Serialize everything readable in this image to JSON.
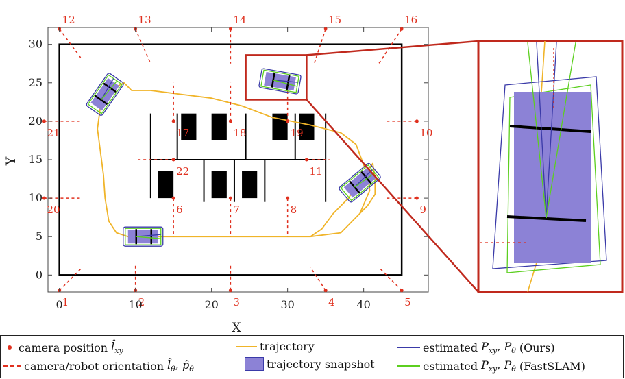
{
  "chart_data": {
    "type": "scatter",
    "xlabel": "X",
    "ylabel": "Y",
    "xlim": [
      -1.5,
      48.5
    ],
    "ylim": [
      -2.2,
      32.2
    ],
    "xticks": [
      0,
      10,
      20,
      30,
      40
    ],
    "yticks": [
      0,
      5,
      10,
      15,
      20,
      25,
      30
    ],
    "grid": false,
    "colors": {
      "camera": "#e0301e",
      "trajectory": "#f0b429",
      "ours": "#3a3aa8",
      "fastslam": "#5ccf1f",
      "snapshot": "#8c82d6",
      "zoom_frame": "#c0291d"
    },
    "arena": {
      "x": [
        0,
        45
      ],
      "y": [
        0,
        30
      ]
    },
    "cameras": [
      {
        "label": "1",
        "x": 0,
        "y": -2,
        "dx": 3,
        "dy": 3
      },
      {
        "label": "2",
        "x": 10,
        "y": -2,
        "dx": 0,
        "dy": 3.5
      },
      {
        "label": "3",
        "x": 22.5,
        "y": -2,
        "dx": 0,
        "dy": 3.5
      },
      {
        "label": "4",
        "x": 35,
        "y": -2,
        "dx": -2,
        "dy": 3
      },
      {
        "label": "5",
        "x": 45,
        "y": -2,
        "dx": -3,
        "dy": 3
      },
      {
        "label": "6",
        "x": 15,
        "y": 10,
        "dx": 0,
        "dy": -5
      },
      {
        "label": "7",
        "x": 22.5,
        "y": 10,
        "dx": 0,
        "dy": -5
      },
      {
        "label": "8",
        "x": 30,
        "y": 10,
        "dx": 0,
        "dy": -5
      },
      {
        "label": "9",
        "x": 47,
        "y": 10,
        "dx": -4,
        "dy": 0
      },
      {
        "label": "10",
        "x": 47,
        "y": 20,
        "dx": -4,
        "dy": 0
      },
      {
        "label": "11",
        "x": 32.5,
        "y": 15,
        "dx": 3,
        "dy": 0
      },
      {
        "label": "12",
        "x": 0,
        "y": 32,
        "dx": 3,
        "dy": -4
      },
      {
        "label": "13",
        "x": 10,
        "y": 32,
        "dx": 2,
        "dy": -4.5
      },
      {
        "label": "14",
        "x": 22.5,
        "y": 32,
        "dx": 0,
        "dy": -4.5
      },
      {
        "label": "15",
        "x": 35,
        "y": 32,
        "dx": -1.5,
        "dy": -4.5
      },
      {
        "label": "16",
        "x": 45,
        "y": 32,
        "dx": -3,
        "dy": -4.5
      },
      {
        "label": "17",
        "x": 15,
        "y": 20,
        "dx": 0,
        "dy": 5
      },
      {
        "label": "18",
        "x": 22.5,
        "y": 20,
        "dx": 0,
        "dy": 5
      },
      {
        "label": "19",
        "x": 30,
        "y": 20,
        "dx": 0,
        "dy": 5
      },
      {
        "label": "20",
        "x": -2,
        "y": 10,
        "dx": 5,
        "dy": 0
      },
      {
        "label": "21",
        "x": -2,
        "y": 20,
        "dx": 5,
        "dy": 0
      },
      {
        "label": "22",
        "x": 15,
        "y": 15,
        "dx": -5,
        "dy": 0
      }
    ],
    "obstacles": [
      [
        16,
        17.5,
        18,
        21
      ],
      [
        20,
        17.5,
        22,
        21
      ],
      [
        28,
        17.5,
        30,
        21
      ],
      [
        31.5,
        17.5,
        33.5,
        21
      ],
      [
        13,
        10,
        15,
        13.5
      ],
      [
        20,
        10,
        22,
        13.5
      ],
      [
        24,
        10,
        26,
        13.5
      ]
    ],
    "walls": [
      [
        12,
        15,
        35,
        15
      ],
      [
        12,
        10,
        12,
        21
      ],
      [
        19,
        9.5,
        19,
        15
      ],
      [
        23,
        9.5,
        23,
        15
      ],
      [
        27,
        9.5,
        27,
        15
      ],
      [
        15.5,
        15,
        15.5,
        21
      ],
      [
        24.5,
        15,
        24.5,
        21
      ],
      [
        31,
        15,
        31,
        21
      ],
      [
        35,
        9.5,
        35,
        21
      ]
    ],
    "trajectory": {
      "x": [
        10,
        14,
        20,
        26,
        30,
        33,
        37,
        39.5,
        40.8,
        40.5,
        39,
        37,
        33,
        28,
        24,
        20,
        16,
        12,
        9.5,
        8.5,
        6.5,
        5.4,
        5,
        5.4,
        5.8,
        6,
        6.5,
        7.5,
        9,
        12,
        16,
        20,
        25,
        30,
        33,
        34.5,
        36,
        38,
        40,
        41.2,
        41.5,
        41.5,
        40.5,
        39.5
      ],
      "y": [
        5,
        5,
        5,
        5,
        5,
        5,
        5.5,
        8,
        11,
        13,
        17,
        18.5,
        19.5,
        20.5,
        22,
        23,
        23.5,
        24,
        24,
        25,
        24,
        22,
        19,
        16,
        13,
        10,
        7,
        5.5,
        5,
        5,
        5,
        5,
        5,
        5,
        5,
        6,
        8,
        10,
        13,
        14.5,
        12.5,
        10.5,
        9,
        8
      ]
    },
    "robots": [
      {
        "x": 11,
        "y": 5,
        "angle": 0
      },
      {
        "x": 6,
        "y": 23.5,
        "angle": 55
      },
      {
        "x": 29,
        "y": 25.2,
        "angle": -10
      },
      {
        "x": 39.5,
        "y": 12,
        "angle": 40
      }
    ],
    "zoom_box": {
      "x": [
        24.5,
        32.5
      ],
      "y": [
        22.8,
        28.6
      ]
    },
    "x_labels_below": [
      "0",
      "10",
      "20",
      "30",
      "40"
    ],
    "y_labels_left": [
      "0",
      "5",
      "10",
      "15",
      "20",
      "25",
      "30"
    ]
  },
  "legend": {
    "camera_position": "camera position",
    "camera_orientation": "camera/robot orientation",
    "trajectory": "trajectory",
    "snapshot": "trajectory snapshot",
    "ours": "estimated",
    "ours_suffix": "(Ours)",
    "fastslam": "estimated",
    "fastslam_suffix": "(FastSLAM)"
  }
}
